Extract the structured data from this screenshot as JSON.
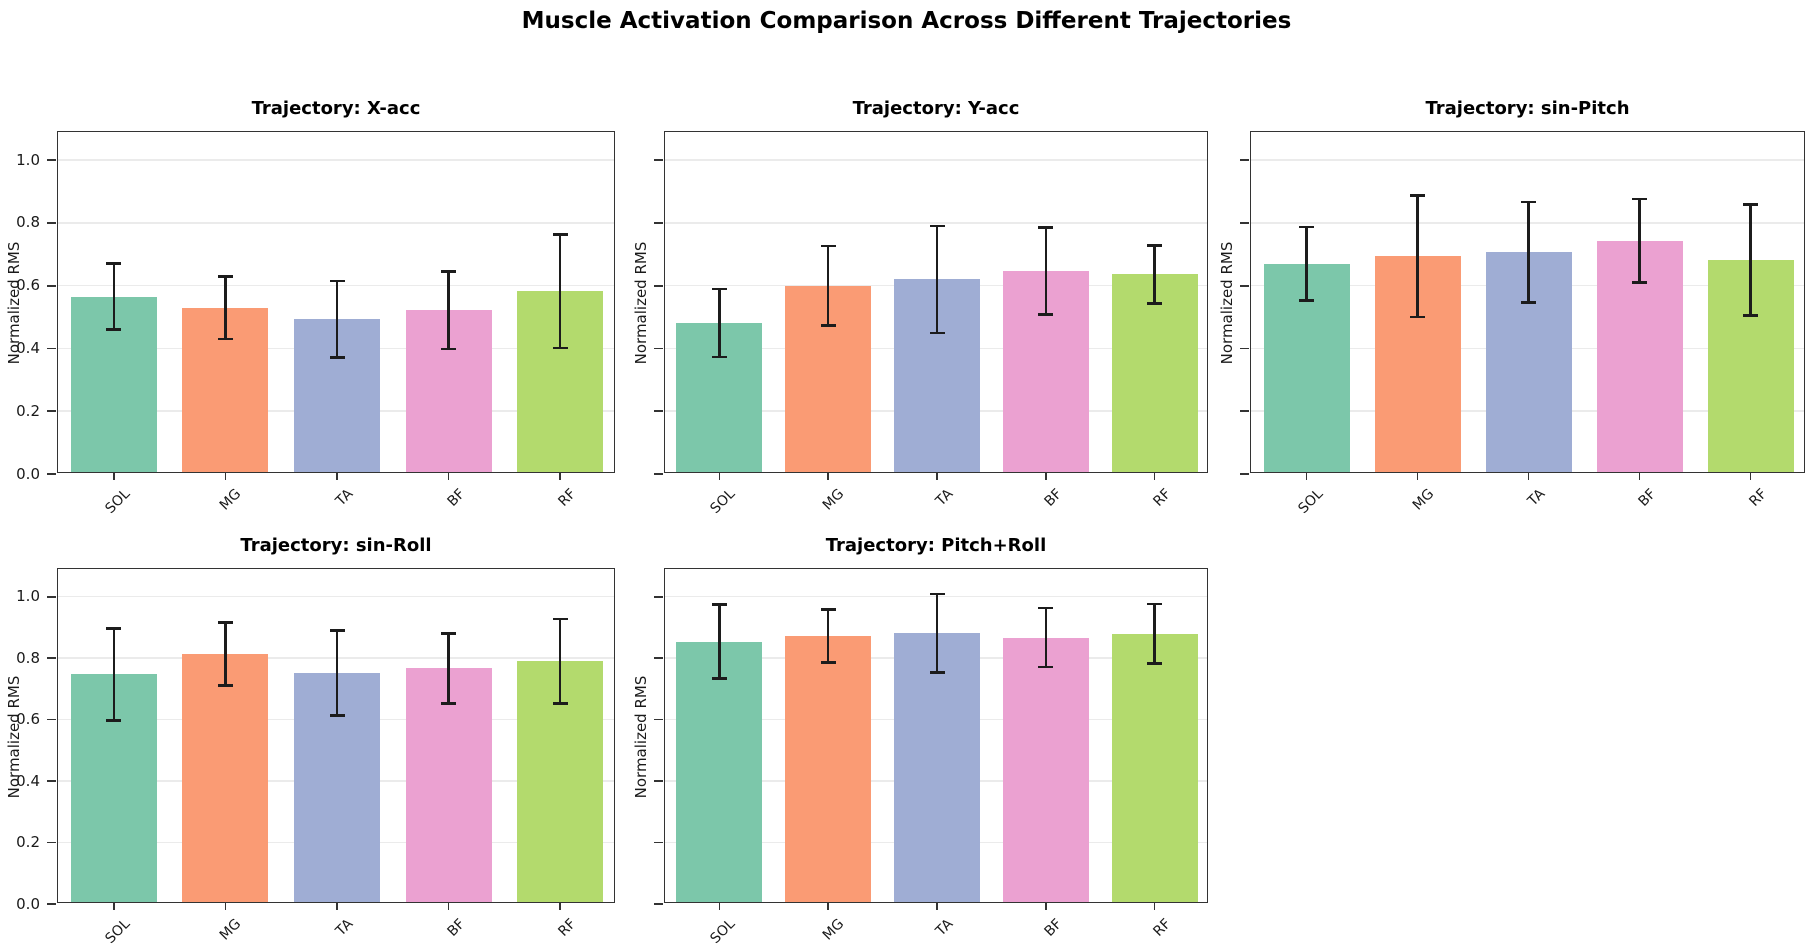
{
  "title": "Muscle Activation Comparison Across Different Trajectories",
  "colors": {
    "bars": [
      "#7cc7aa",
      "#fa9b74",
      "#9fadd4",
      "#eba1d1",
      "#b3da6d"
    ],
    "error": "#1c1c1c",
    "grid": "#ebebeb",
    "spine": "#333333",
    "background": "#ffffff"
  },
  "chart_data": [
    {
      "type": "bar",
      "title": "Trajectory: X-acc",
      "ylabel": "Normalized RMS",
      "categories": [
        "SOL",
        "MG",
        "TA",
        "BF",
        "RF"
      ],
      "values": [
        0.565,
        0.53,
        0.493,
        0.522,
        0.583
      ],
      "errors": [
        0.105,
        0.1,
        0.122,
        0.124,
        0.181
      ],
      "ylim": [
        0,
        1.09
      ],
      "yticks": [
        0.0,
        0.2,
        0.4,
        0.6,
        0.8,
        1.0
      ],
      "ytick_labels": [
        "0.0",
        "0.2",
        "0.4",
        "0.6",
        "0.8",
        "1.0"
      ],
      "grid": true,
      "legend": "none"
    },
    {
      "type": "bar",
      "title": "Trajectory: Y-acc",
      "ylabel": "Normalized RMS",
      "categories": [
        "SOL",
        "MG",
        "TA",
        "BF",
        "RF"
      ],
      "values": [
        0.481,
        0.6,
        0.62,
        0.647,
        0.636
      ],
      "errors": [
        0.108,
        0.127,
        0.17,
        0.138,
        0.093
      ],
      "ylim": [
        0,
        1.09
      ],
      "yticks": [
        0.0,
        0.2,
        0.4,
        0.6,
        0.8,
        1.0
      ],
      "grid": true,
      "legend": "none"
    },
    {
      "type": "bar",
      "title": "Trajectory: sin-Pitch",
      "ylabel": "Normalized RMS",
      "categories": [
        "SOL",
        "MG",
        "TA",
        "BF",
        "RF"
      ],
      "values": [
        0.67,
        0.694,
        0.707,
        0.743,
        0.682
      ],
      "errors": [
        0.117,
        0.193,
        0.16,
        0.133,
        0.177
      ],
      "ylim": [
        0,
        1.09
      ],
      "yticks": [
        0.0,
        0.2,
        0.4,
        0.6,
        0.8,
        1.0
      ],
      "grid": true,
      "legend": "none"
    },
    {
      "type": "bar",
      "title": "Trajectory: sin-Roll",
      "ylabel": "Normalized RMS",
      "categories": [
        "SOL",
        "MG",
        "TA",
        "BF",
        "RF"
      ],
      "values": [
        0.747,
        0.813,
        0.752,
        0.767,
        0.79
      ],
      "errors": [
        0.15,
        0.102,
        0.138,
        0.114,
        0.137
      ],
      "ylim": [
        0,
        1.09
      ],
      "yticks": [
        0.0,
        0.2,
        0.4,
        0.6,
        0.8,
        1.0
      ],
      "ytick_labels": [
        "0.0",
        "0.2",
        "0.4",
        "0.6",
        "0.8",
        "1.0"
      ],
      "grid": true,
      "legend": "none"
    },
    {
      "type": "bar",
      "title": "Trajectory: Pitch+Roll",
      "ylabel": "Normalized RMS",
      "categories": [
        "SOL",
        "MG",
        "TA",
        "BF",
        "RF"
      ],
      "values": [
        0.854,
        0.872,
        0.881,
        0.867,
        0.879
      ],
      "errors": [
        0.12,
        0.086,
        0.127,
        0.096,
        0.097
      ],
      "ylim": [
        0,
        1.09
      ],
      "yticks": [
        0.0,
        0.2,
        0.4,
        0.6,
        0.8,
        1.0
      ],
      "grid": true,
      "legend": "none"
    }
  ]
}
